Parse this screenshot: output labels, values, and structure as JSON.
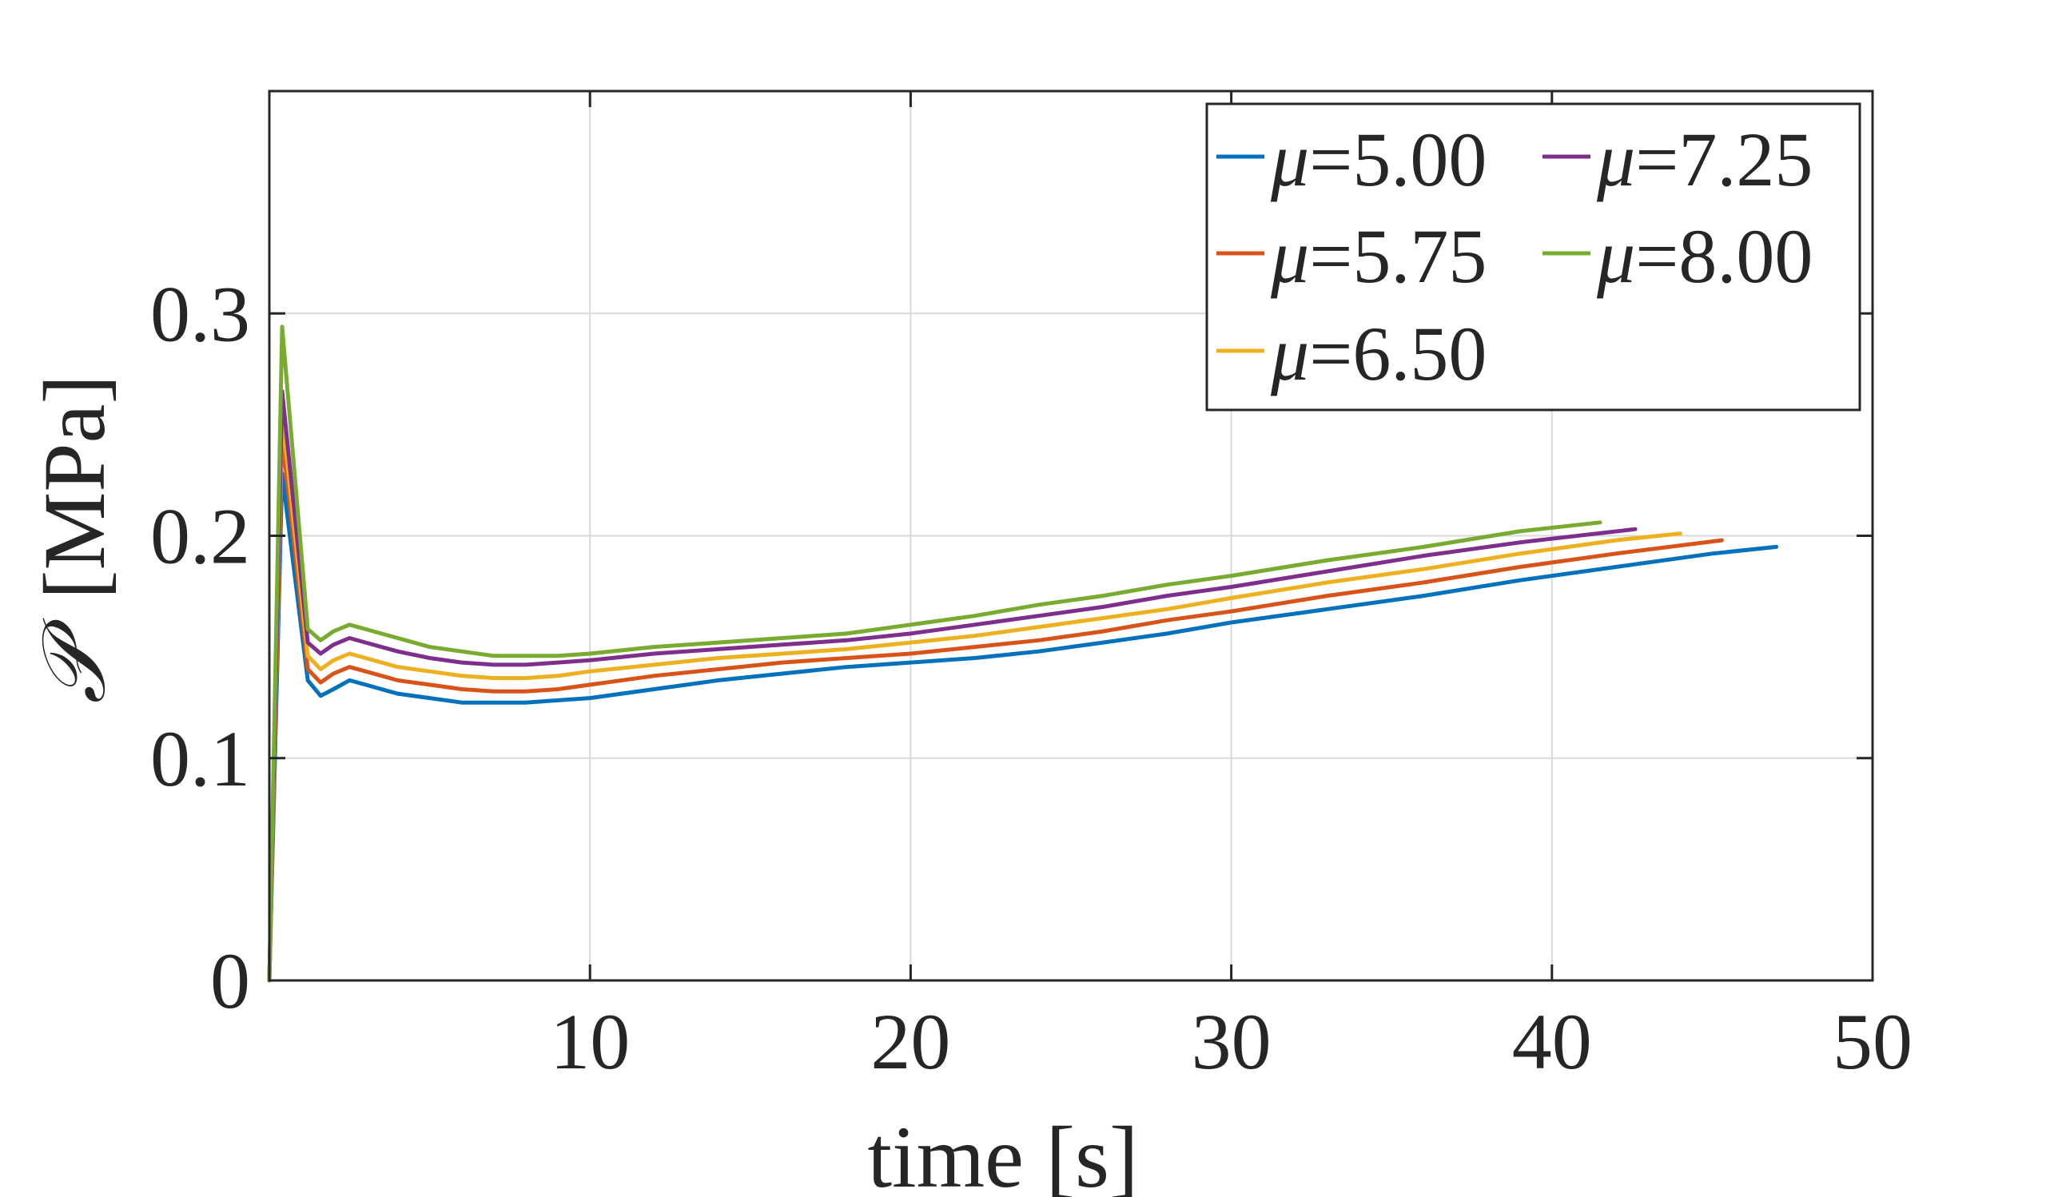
{
  "chart_data": {
    "type": "line",
    "title": "",
    "xlabel": "time [s]",
    "ylabel_symbol": "𝒫",
    "ylabel_unit": "[MPa]",
    "xlim": [
      0,
      50
    ],
    "ylim": [
      0,
      0.4
    ],
    "xticks": [
      10,
      20,
      30,
      40,
      50
    ],
    "yticks": [
      0,
      0.1,
      0.2,
      0.3
    ],
    "xtick_labels": [
      "10",
      "20",
      "30",
      "40",
      "50"
    ],
    "ytick_labels": [
      "0",
      "0.1",
      "0.2",
      "0.3"
    ],
    "grid": true,
    "legend_position": "top-right",
    "legend_symbol": "μ",
    "series": [
      {
        "name": "μ=5.00",
        "mu_label": "=5.00",
        "color": "#0072BD",
        "x": [
          0,
          0.4,
          1.2,
          1.6,
          2.0,
          2.5,
          3.0,
          4.0,
          5.0,
          6.0,
          7.0,
          8.0,
          9.0,
          10.0,
          12.0,
          14.0,
          16.0,
          18.0,
          20.0,
          22.0,
          24.0,
          26.0,
          28.0,
          30.0,
          33.0,
          36.0,
          39.0,
          42.0,
          45.0,
          47.0
        ],
        "values": [
          0,
          0.228,
          0.135,
          0.128,
          0.131,
          0.135,
          0.133,
          0.129,
          0.127,
          0.125,
          0.125,
          0.125,
          0.126,
          0.127,
          0.131,
          0.135,
          0.138,
          0.141,
          0.143,
          0.145,
          0.148,
          0.152,
          0.156,
          0.161,
          0.167,
          0.173,
          0.18,
          0.186,
          0.192,
          0.195
        ]
      },
      {
        "name": "μ=5.75",
        "mu_label": "=5.75",
        "color": "#D95319",
        "x": [
          0,
          0.4,
          1.2,
          1.6,
          2.0,
          2.5,
          3.0,
          4.0,
          5.0,
          6.0,
          7.0,
          8.0,
          9.0,
          10.0,
          12.0,
          14.0,
          16.0,
          18.0,
          20.0,
          22.0,
          24.0,
          26.0,
          28.0,
          30.0,
          33.0,
          36.0,
          39.0,
          42.0,
          45.3
        ],
        "values": [
          0,
          0.245,
          0.14,
          0.134,
          0.138,
          0.141,
          0.139,
          0.135,
          0.133,
          0.131,
          0.13,
          0.13,
          0.131,
          0.133,
          0.137,
          0.14,
          0.143,
          0.145,
          0.147,
          0.15,
          0.153,
          0.157,
          0.162,
          0.166,
          0.173,
          0.179,
          0.186,
          0.192,
          0.198
        ]
      },
      {
        "name": "μ=6.50",
        "mu_label": "=6.50",
        "color": "#EDB120",
        "x": [
          0,
          0.4,
          1.2,
          1.6,
          2.0,
          2.5,
          3.0,
          4.0,
          5.0,
          6.0,
          7.0,
          8.0,
          9.0,
          10.0,
          12.0,
          14.0,
          16.0,
          18.0,
          20.0,
          22.0,
          24.0,
          26.0,
          28.0,
          30.0,
          33.0,
          36.0,
          39.0,
          42.0,
          44.0
        ],
        "values": [
          0,
          0.255,
          0.146,
          0.14,
          0.144,
          0.147,
          0.145,
          0.141,
          0.139,
          0.137,
          0.136,
          0.136,
          0.137,
          0.139,
          0.142,
          0.145,
          0.147,
          0.149,
          0.152,
          0.155,
          0.159,
          0.163,
          0.167,
          0.172,
          0.179,
          0.185,
          0.192,
          0.198,
          0.201
        ]
      },
      {
        "name": "μ=7.25",
        "mu_label": "=7.25",
        "color": "#7E2F8E",
        "x": [
          0,
          0.4,
          1.2,
          1.6,
          2.0,
          2.5,
          3.0,
          4.0,
          5.0,
          6.0,
          7.0,
          8.0,
          9.0,
          10.0,
          12.0,
          14.0,
          16.0,
          18.0,
          20.0,
          22.0,
          24.0,
          26.0,
          28.0,
          30.0,
          33.0,
          36.0,
          39.0,
          42.6
        ],
        "values": [
          0,
          0.265,
          0.152,
          0.147,
          0.151,
          0.154,
          0.152,
          0.148,
          0.145,
          0.143,
          0.142,
          0.142,
          0.143,
          0.144,
          0.147,
          0.149,
          0.151,
          0.153,
          0.156,
          0.16,
          0.164,
          0.168,
          0.173,
          0.177,
          0.184,
          0.191,
          0.197,
          0.203
        ]
      },
      {
        "name": "μ=8.00",
        "mu_label": "=8.00",
        "color": "#77AC30",
        "x": [
          0,
          0.4,
          1.2,
          1.6,
          2.0,
          2.5,
          3.0,
          4.0,
          5.0,
          6.0,
          7.0,
          8.0,
          9.0,
          10.0,
          12.0,
          14.0,
          16.0,
          18.0,
          20.0,
          22.0,
          24.0,
          26.0,
          28.0,
          30.0,
          33.0,
          36.0,
          39.0,
          41.5
        ],
        "values": [
          0,
          0.294,
          0.158,
          0.153,
          0.157,
          0.16,
          0.158,
          0.154,
          0.15,
          0.148,
          0.146,
          0.146,
          0.146,
          0.147,
          0.15,
          0.152,
          0.154,
          0.156,
          0.16,
          0.164,
          0.169,
          0.173,
          0.178,
          0.182,
          0.189,
          0.195,
          0.202,
          0.206
        ]
      }
    ]
  }
}
